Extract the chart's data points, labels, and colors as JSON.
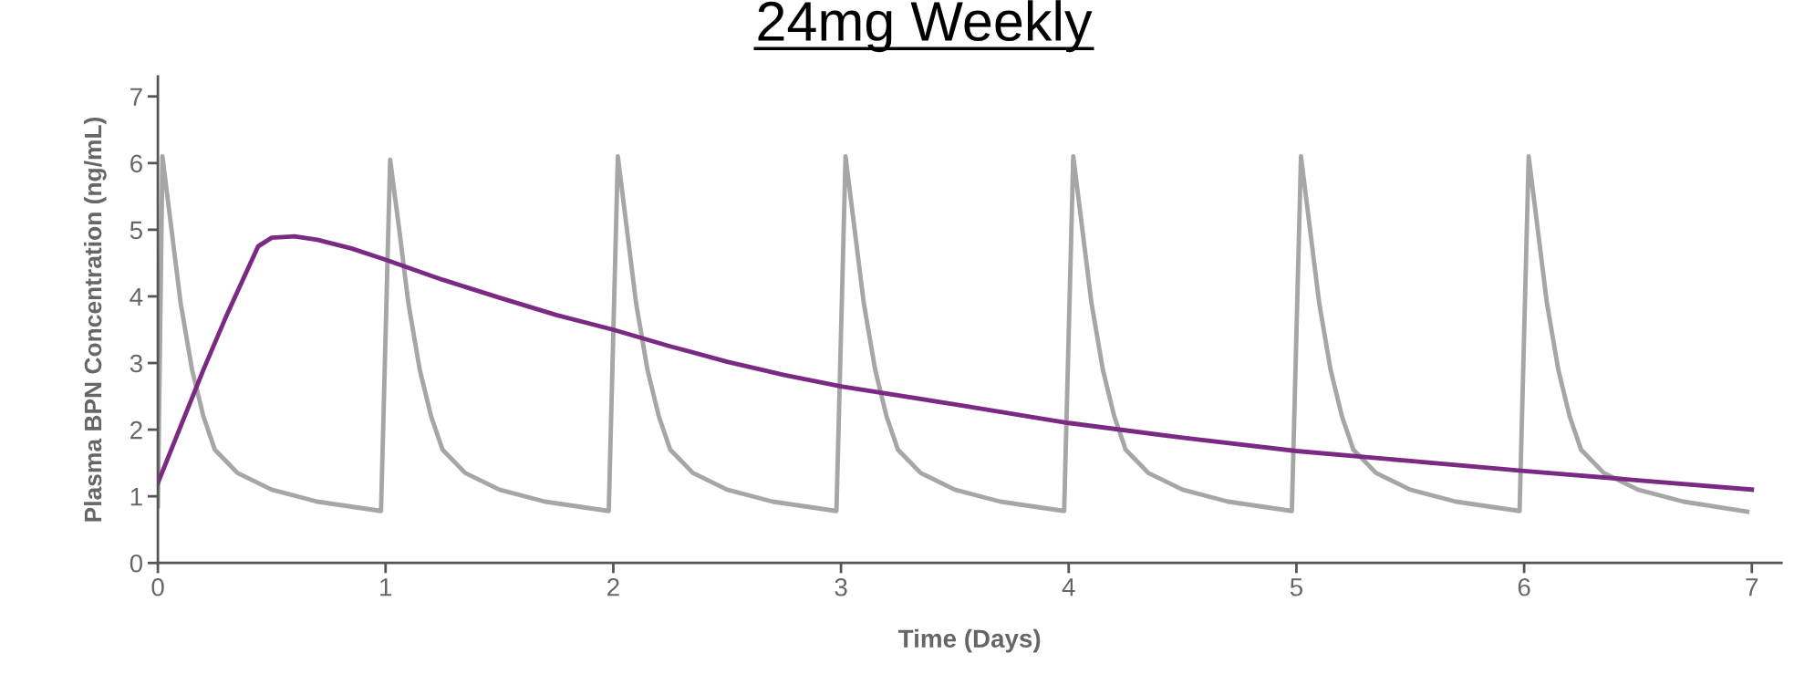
{
  "chart_data": {
    "type": "line",
    "title": "24mg Weekly",
    "xlabel": "Time (Days)",
    "ylabel": "Plasma BPN Concentration (ng/mL)",
    "xlim": [
      0,
      7.13
    ],
    "ylim": [
      0,
      7.3
    ],
    "xticks": [
      0,
      1,
      2,
      3,
      4,
      5,
      6,
      7
    ],
    "yticks": [
      0,
      1,
      2,
      3,
      4,
      5,
      6,
      7
    ],
    "grid": false,
    "legend": false,
    "marker": "none",
    "line_style": "solid",
    "series": [
      {
        "color": "#a6a6a6",
        "x": [
          0,
          0.02,
          0.06,
          0.1,
          0.15,
          0.2,
          0.25,
          0.35,
          0.5,
          0.7,
          0.98,
          1.02,
          1.06,
          1.1,
          1.15,
          1.2,
          1.25,
          1.35,
          1.5,
          1.7,
          1.98,
          2.02,
          2.06,
          2.1,
          2.15,
          2.2,
          2.25,
          2.35,
          2.5,
          2.7,
          2.98,
          3.02,
          3.06,
          3.1,
          3.15,
          3.2,
          3.25,
          3.35,
          3.5,
          3.7,
          3.98,
          4.02,
          4.06,
          4.1,
          4.15,
          4.2,
          4.25,
          4.35,
          4.5,
          4.7,
          4.98,
          5.02,
          5.06,
          5.1,
          5.15,
          5.2,
          5.25,
          5.35,
          5.5,
          5.7,
          5.98,
          6.02,
          6.06,
          6.1,
          6.15,
          6.2,
          6.25,
          6.35,
          6.5,
          6.7,
          6.98
        ],
        "values": [
          0.85,
          6.1,
          5.0,
          3.9,
          2.9,
          2.2,
          1.7,
          1.35,
          1.1,
          0.92,
          0.78,
          6.05,
          5.0,
          3.9,
          2.9,
          2.2,
          1.7,
          1.35,
          1.1,
          0.92,
          0.78,
          6.1,
          5.0,
          3.9,
          2.9,
          2.2,
          1.7,
          1.35,
          1.1,
          0.92,
          0.78,
          6.1,
          5.0,
          3.9,
          2.9,
          2.2,
          1.7,
          1.35,
          1.1,
          0.92,
          0.78,
          6.1,
          5.0,
          3.9,
          2.9,
          2.2,
          1.7,
          1.35,
          1.1,
          0.92,
          0.78,
          6.1,
          5.0,
          3.9,
          2.9,
          2.2,
          1.7,
          1.35,
          1.1,
          0.92,
          0.78,
          6.1,
          5.0,
          3.9,
          2.9,
          2.2,
          1.7,
          1.35,
          1.1,
          0.92,
          0.77
        ]
      },
      {
        "color": "#7b2a84",
        "x": [
          0,
          0.1,
          0.2,
          0.3,
          0.44,
          0.5,
          0.6,
          0.7,
          0.85,
          1.0,
          1.25,
          1.5,
          1.75,
          2.0,
          2.25,
          2.5,
          2.75,
          3.0,
          3.5,
          4.0,
          4.5,
          5.0,
          5.5,
          6.0,
          6.5,
          7.0
        ],
        "values": [
          1.2,
          2.05,
          2.9,
          3.7,
          4.75,
          4.88,
          4.9,
          4.85,
          4.72,
          4.55,
          4.25,
          3.98,
          3.72,
          3.5,
          3.25,
          3.02,
          2.82,
          2.65,
          2.38,
          2.1,
          1.88,
          1.68,
          1.53,
          1.38,
          1.24,
          1.1
        ]
      }
    ]
  }
}
